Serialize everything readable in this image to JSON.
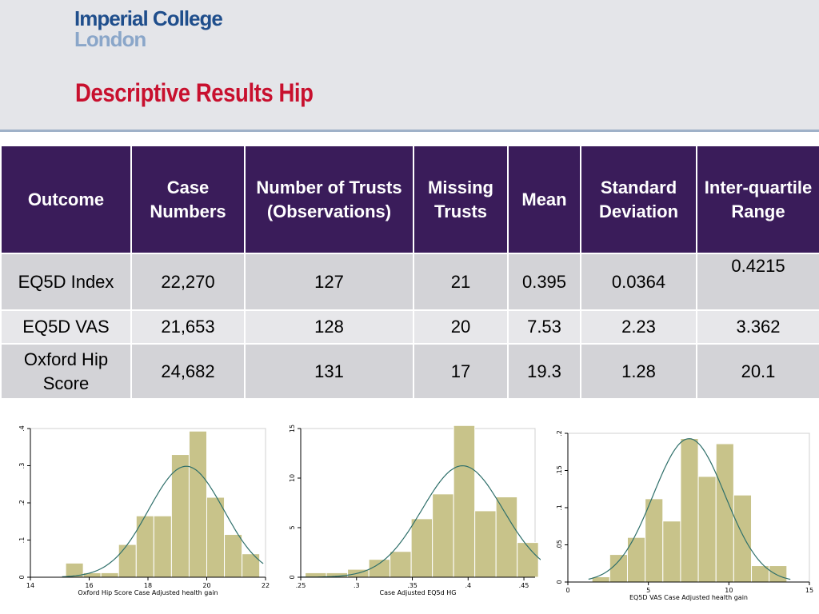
{
  "header": {
    "logo_line1": "Imperial College",
    "logo_line2": "London",
    "title": "Descriptive Results Hip"
  },
  "table": {
    "headers": [
      "Outcome",
      "Case Numbers",
      "Number of Trusts (Observations)",
      "Missing Trusts",
      "Mean",
      "Standard Deviation",
      "Inter-quartile Range"
    ],
    "rows": [
      [
        "EQ5D Index",
        "22,270",
        "127",
        "21",
        "0.395",
        "0.0364",
        "0.4215"
      ],
      [
        "EQ5D VAS",
        "21,653",
        "128",
        "20",
        "7.53",
        "2.23",
        "3.362"
      ],
      [
        "Oxford Hip Score",
        "24,682",
        "131",
        "17",
        "19.3",
        "1.28",
        "20.1"
      ]
    ]
  },
  "colors": {
    "header_bg": "#3a1c5a",
    "bar_fill": "#c8c38a",
    "curve": "#2e6f6a",
    "title": "#c8102e"
  },
  "chart_data": [
    {
      "type": "bar",
      "subtype": "histogram with normal density curve",
      "xlabel": "Oxford Hip Score Case Adjusted health gain",
      "ylabel": "",
      "xlim": [
        14,
        22
      ],
      "ylim": [
        0,
        0.4
      ],
      "xticks": [
        "14",
        "16",
        "18",
        "20",
        "22"
      ],
      "xtick_values": [
        14,
        16,
        18,
        20,
        22
      ],
      "yticks": [
        "0",
        ".1",
        ".2",
        ".3",
        ".4"
      ],
      "ytick_values": [
        0,
        0.1,
        0.2,
        0.3,
        0.4
      ],
      "bin_edges": [
        15.2,
        15.8,
        16.4,
        17.0,
        17.6,
        18.2,
        18.8,
        19.4,
        20.0,
        20.6,
        21.2,
        21.8
      ],
      "values": [
        0.038,
        0.012,
        0.012,
        0.088,
        0.165,
        0.165,
        0.33,
        0.393,
        0.215,
        0.115,
        0.063
      ],
      "curve": {
        "mean": 19.3,
        "sd": 1.28
      }
    },
    {
      "type": "bar",
      "subtype": "histogram with normal density curve",
      "xlabel": "Case Adjusted EQ5d HG",
      "ylabel": "",
      "xlim": [
        0.25,
        0.46
      ],
      "ylim": [
        0,
        15
      ],
      "xticks": [
        ".25",
        ".3",
        ".35",
        ".4",
        ".45"
      ],
      "xtick_values": [
        0.25,
        0.3,
        0.35,
        0.4,
        0.45
      ],
      "yticks": [
        "0",
        "5",
        "10",
        "15"
      ],
      "ytick_values": [
        0,
        5,
        10,
        15
      ],
      "bin_edges": [
        0.254,
        0.273,
        0.292,
        0.311,
        0.33,
        0.349,
        0.368,
        0.387,
        0.406,
        0.425,
        0.444,
        0.463
      ],
      "values": [
        0.45,
        0.45,
        0.8,
        1.8,
        2.6,
        5.9,
        8.4,
        15.3,
        6.7,
        8.1,
        3.5
      ],
      "curve": {
        "mean": 0.395,
        "sd": 0.0364
      }
    },
    {
      "type": "bar",
      "subtype": "histogram with normal density curve",
      "xlabel": "EQ5D VAS Case Adjusted health gain",
      "ylabel": "",
      "xlim": [
        0,
        15
      ],
      "ylim": [
        0,
        0.2
      ],
      "xticks": [
        "0",
        "5",
        "10",
        "15"
      ],
      "xtick_values": [
        0,
        5,
        10,
        15
      ],
      "yticks": [
        "0",
        ".05",
        ".1",
        ".15",
        ".2"
      ],
      "ytick_values": [
        0,
        0.05,
        0.1,
        0.15,
        0.2
      ],
      "bin_edges": [
        1.5,
        2.6,
        3.7,
        4.8,
        5.9,
        7.0,
        8.1,
        9.2,
        10.3,
        11.4,
        12.5,
        13.6
      ],
      "values": [
        0.007,
        0.037,
        0.06,
        0.112,
        0.082,
        0.193,
        0.142,
        0.186,
        0.117,
        0.022,
        0.022
      ],
      "curve": {
        "mean": 7.53,
        "sd": 2.23
      }
    }
  ]
}
